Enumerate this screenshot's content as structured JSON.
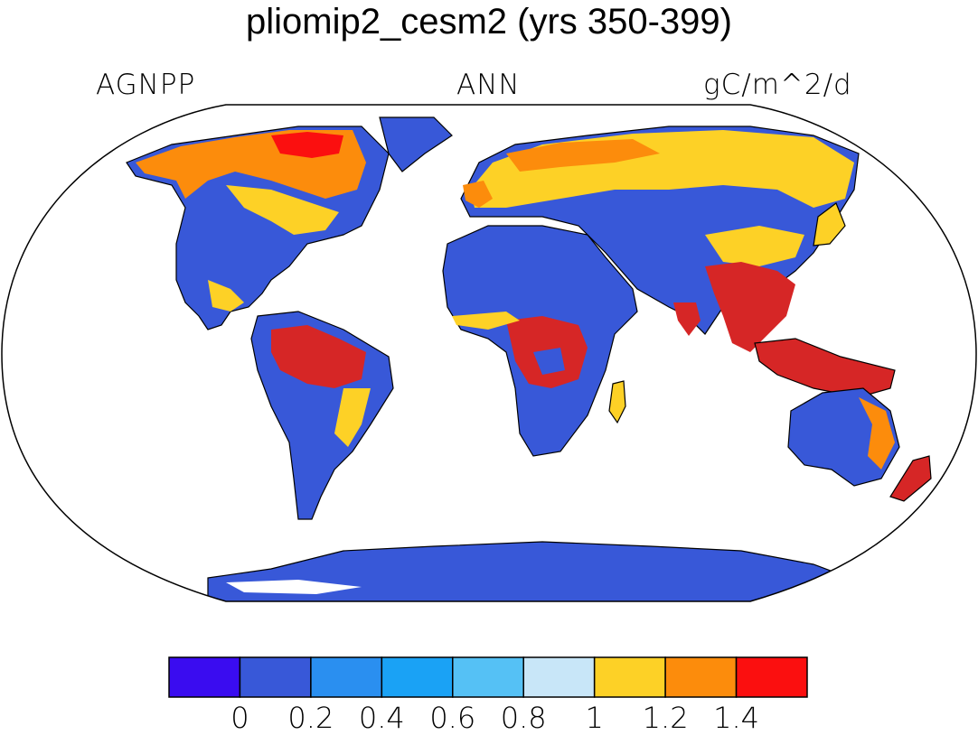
{
  "title": "pliomip2_cesm2 (yrs 350-399)",
  "left_label": "AGNPP",
  "center_label": "ANN",
  "right_label": "gC/m^2/d",
  "colorbar": {
    "colors": [
      "#3a0cf0",
      "#3858d8",
      "#2a8ff0",
      "#1aa2f5",
      "#55c1f5",
      "#c8e6f8",
      "#fdd126",
      "#fc8c0c",
      "#fb0f0f",
      "#d62626"
    ],
    "tick_labels": [
      "0",
      "0.2",
      "0.4",
      "0.6",
      "0.8",
      "1",
      "1.2",
      "1.4"
    ]
  },
  "map": {
    "projection": "robinson",
    "ocean_color": "#ffffff",
    "land_base_color": "#3858d8"
  }
}
